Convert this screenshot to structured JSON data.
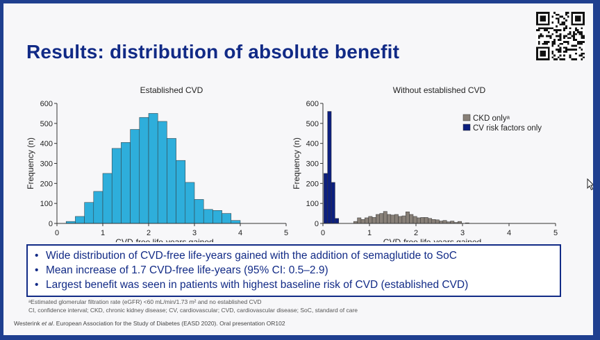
{
  "title": "Results: distribution of absolute benefit",
  "chart_data": [
    {
      "type": "bar",
      "title": "Established CVD",
      "xlabel": "CVD-free life-years gained",
      "ylabel": "Frequency (n)",
      "xlim": [
        0,
        5
      ],
      "ylim": [
        0,
        600
      ],
      "xticks": [
        0,
        1,
        2,
        3,
        4,
        5
      ],
      "yticks": [
        0,
        100,
        200,
        300,
        400,
        500,
        600
      ],
      "bin_width": 0.2,
      "bars": [
        {
          "x": 0.2,
          "y": 10
        },
        {
          "x": 0.4,
          "y": 35
        },
        {
          "x": 0.6,
          "y": 105
        },
        {
          "x": 0.8,
          "y": 160
        },
        {
          "x": 1.0,
          "y": 250
        },
        {
          "x": 1.2,
          "y": 375
        },
        {
          "x": 1.4,
          "y": 405
        },
        {
          "x": 1.6,
          "y": 470
        },
        {
          "x": 1.8,
          "y": 530
        },
        {
          "x": 2.0,
          "y": 550
        },
        {
          "x": 2.2,
          "y": 510
        },
        {
          "x": 2.4,
          "y": 425
        },
        {
          "x": 2.6,
          "y": 315
        },
        {
          "x": 2.8,
          "y": 205
        },
        {
          "x": 3.0,
          "y": 120
        },
        {
          "x": 3.2,
          "y": 70
        },
        {
          "x": 3.4,
          "y": 65
        },
        {
          "x": 3.6,
          "y": 50
        },
        {
          "x": 3.8,
          "y": 15
        }
      ],
      "color": "#2eaedb"
    },
    {
      "type": "bar",
      "title": "Without established CVD",
      "xlabel": "CVD-free life-years gained",
      "ylabel": "Frequency (n)",
      "xlim": [
        0,
        5
      ],
      "ylim": [
        0,
        600
      ],
      "xticks": [
        0,
        1,
        2,
        3,
        4,
        5
      ],
      "yticks": [
        0,
        100,
        200,
        300,
        400,
        500,
        600
      ],
      "legend_position": "top-right",
      "series": [
        {
          "name": "CKD onlyᵃ",
          "color": "#888078",
          "bin_width": 0.08,
          "bars": [
            {
              "x": 0.66,
              "y": 10
            },
            {
              "x": 0.74,
              "y": 28
            },
            {
              "x": 0.82,
              "y": 20
            },
            {
              "x": 0.9,
              "y": 28
            },
            {
              "x": 0.98,
              "y": 35
            },
            {
              "x": 1.06,
              "y": 30
            },
            {
              "x": 1.14,
              "y": 45
            },
            {
              "x": 1.22,
              "y": 50
            },
            {
              "x": 1.3,
              "y": 60
            },
            {
              "x": 1.38,
              "y": 45
            },
            {
              "x": 1.46,
              "y": 42
            },
            {
              "x": 1.54,
              "y": 45
            },
            {
              "x": 1.62,
              "y": 35
            },
            {
              "x": 1.7,
              "y": 38
            },
            {
              "x": 1.78,
              "y": 58
            },
            {
              "x": 1.86,
              "y": 45
            },
            {
              "x": 1.94,
              "y": 35
            },
            {
              "x": 2.02,
              "y": 28
            },
            {
              "x": 2.1,
              "y": 30
            },
            {
              "x": 2.18,
              "y": 30
            },
            {
              "x": 2.26,
              "y": 25
            },
            {
              "x": 2.34,
              "y": 20
            },
            {
              "x": 2.42,
              "y": 18
            },
            {
              "x": 2.5,
              "y": 12
            },
            {
              "x": 2.58,
              "y": 15
            },
            {
              "x": 2.66,
              "y": 8
            },
            {
              "x": 2.74,
              "y": 12
            },
            {
              "x": 2.82,
              "y": 5
            },
            {
              "x": 2.9,
              "y": 10
            },
            {
              "x": 3.06,
              "y": 3
            }
          ]
        },
        {
          "name": "CV risk factors only",
          "color": "#0c1f7e",
          "bin_width": 0.08,
          "bars": [
            {
              "x": 0.02,
              "y": 250
            },
            {
              "x": 0.1,
              "y": 560
            },
            {
              "x": 0.18,
              "y": 205
            },
            {
              "x": 0.26,
              "y": 25
            }
          ]
        }
      ]
    }
  ],
  "bullets": [
    "Wide distribution of CVD-free life-years gained with the addition of semaglutide to SoC",
    "Mean increase of 1.7 CVD-free life-years (95% CI: 0.5–2.9)",
    "Largest benefit was seen in patients with highest baseline risk of CVD (established CVD)"
  ],
  "bullet_symbol": "•",
  "footnotes": [
    "ᵃEstimated glomerular filtration rate (eGFR) <60 mL/min/1.73 m² and no established CVD",
    "CI, confidence interval; CKD, chronic kidney disease; CV, cardiovascular; CVD, cardiovascular disease; SoC, standard of care"
  ],
  "citation_prefix": "Westerink ",
  "citation_em": "et al",
  "citation_rest": ". European Association for the Study of Diabetes (EASD 2020). Oral presentation OR102"
}
